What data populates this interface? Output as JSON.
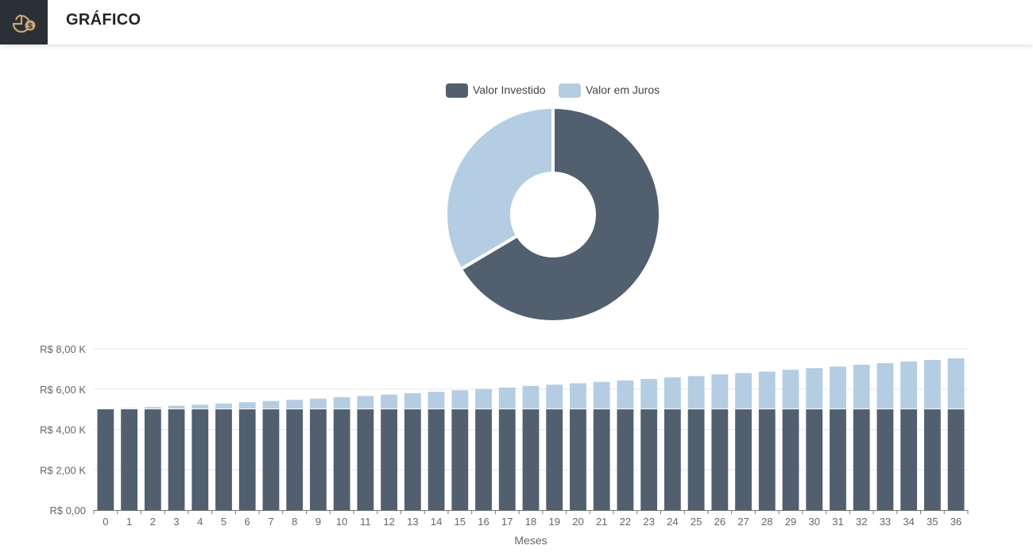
{
  "header": {
    "title": "GRÁFICO",
    "icon": "chart-money-icon"
  },
  "colors": {
    "invested": "#525f6f",
    "interest": "#b4cde2",
    "header_icon_bg": "#2b3036",
    "header_icon_fg": "#c9a77a"
  },
  "chart_data": [
    {
      "type": "pie",
      "subtype": "donut",
      "legend": [
        "Valor Investido",
        "Valor em Juros"
      ],
      "legend_placement": "top",
      "series": [
        {
          "name": "Valor Investido",
          "value": 5000
        },
        {
          "name": "Valor em Juros",
          "value": 2520
        }
      ]
    },
    {
      "type": "bar",
      "stacked": true,
      "xlabel": "Meses",
      "ylabel": "",
      "categories": [
        "0",
        "1",
        "2",
        "3",
        "4",
        "5",
        "6",
        "7",
        "8",
        "9",
        "10",
        "11",
        "12",
        "13",
        "14",
        "15",
        "16",
        "17",
        "18",
        "19",
        "20",
        "21",
        "22",
        "23",
        "24",
        "25",
        "26",
        "27",
        "28",
        "29",
        "30",
        "31",
        "32",
        "33",
        "34",
        "35",
        "36"
      ],
      "ylim": [
        0,
        8000
      ],
      "yticks": [
        "R$ 0,00",
        "R$ 2,00 K",
        "R$ 4,00 K",
        "R$ 6,00 K",
        "R$ 8,00 K"
      ],
      "series": [
        {
          "name": "Valor Investido",
          "values": [
            5000,
            5000,
            5000,
            5000,
            5000,
            5000,
            5000,
            5000,
            5000,
            5000,
            5000,
            5000,
            5000,
            5000,
            5000,
            5000,
            5000,
            5000,
            5000,
            5000,
            5000,
            5000,
            5000,
            5000,
            5000,
            5000,
            5000,
            5000,
            5000,
            5000,
            5000,
            5000,
            5000,
            5000,
            5000,
            5000,
            5000
          ]
        },
        {
          "name": "Valor em Juros",
          "values": [
            0,
            60,
            115,
            175,
            230,
            290,
            350,
            410,
            470,
            530,
            600,
            660,
            730,
            800,
            870,
            940,
            1010,
            1080,
            1160,
            1220,
            1290,
            1360,
            1430,
            1500,
            1580,
            1650,
            1730,
            1800,
            1870,
            1960,
            2040,
            2120,
            2210,
            2290,
            2370,
            2450,
            2530
          ]
        }
      ],
      "grid": true
    }
  ]
}
